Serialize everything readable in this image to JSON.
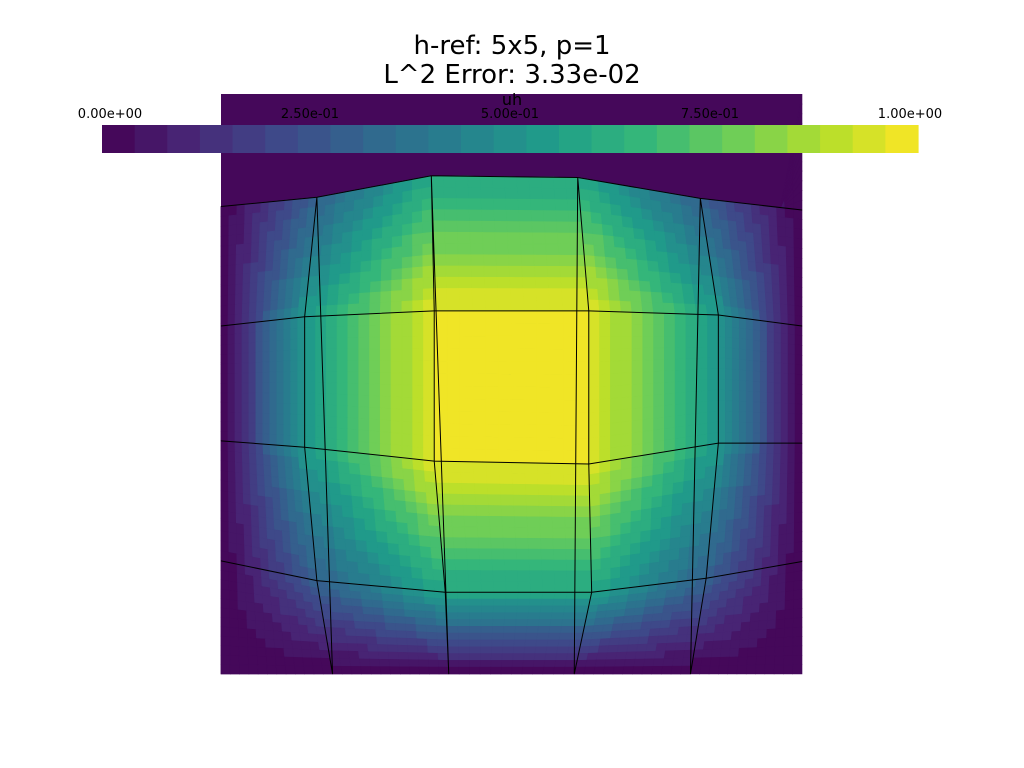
{
  "chart_data": {
    "type": "heatmap",
    "title": "h-ref: 5x5, p=1",
    "subtitle": "L^2 Error: 3.33e-02",
    "field_name": "uh",
    "colormap": "viridis",
    "value_range": [
      0.0,
      1.0
    ],
    "colorbar": {
      "title": "uh",
      "orientation": "horizontal",
      "placement": "top",
      "n_colors": 25,
      "tick_labels": [
        "0.00e+00",
        "2.50e-01",
        "5.00e-01",
        "7.50e-01",
        "1.00e+00"
      ],
      "tick_values": [
        0.0,
        0.25,
        0.5,
        0.75,
        1.0
      ]
    },
    "mesh": {
      "type": "structured-quad",
      "nx": 5,
      "ny": 5,
      "polynomial_degree": 1,
      "domain_x": [
        0,
        1
      ],
      "domain_y": [
        0,
        1
      ],
      "nodes_x": [
        [
          0.0,
          0.192,
          0.392,
          0.608,
          0.808,
          1.0
        ],
        [
          0.0,
          0.165,
          0.362,
          0.614,
          0.825,
          1.0
        ],
        [
          0.0,
          0.144,
          0.367,
          0.633,
          0.856,
          1.0
        ],
        [
          0.0,
          0.144,
          0.367,
          0.633,
          0.856,
          1.0
        ],
        [
          0.0,
          0.165,
          0.386,
          0.638,
          0.835,
          1.0
        ],
        [
          0.0,
          0.192,
          0.392,
          0.608,
          0.808,
          1.0
        ]
      ],
      "nodes_y": [
        [
          0.0,
          0.0,
          0.0,
          0.0,
          0.0,
          1.0
        ],
        [
          0.806,
          0.822,
          0.859,
          0.856,
          0.82,
          0.8
        ],
        [
          0.6,
          0.616,
          0.626,
          0.626,
          0.619,
          0.6
        ],
        [
          0.402,
          0.391,
          0.367,
          0.362,
          0.398,
          0.398
        ],
        [
          0.195,
          0.161,
          0.141,
          0.141,
          0.165,
          0.194
        ],
        [
          0.0,
          0.0,
          0.0,
          0.0,
          0.0,
          0.0
        ]
      ],
      "nodal_values": [
        [
          0.0,
          0.0,
          0.0,
          0.0,
          0.0,
          0.0
        ],
        [
          0.0,
          0.31,
          0.59,
          0.59,
          0.31,
          0.0
        ],
        [
          0.0,
          0.53,
          0.97,
          0.97,
          0.53,
          0.0
        ],
        [
          0.0,
          0.53,
          0.97,
          0.97,
          0.53,
          0.0
        ],
        [
          0.0,
          0.31,
          0.59,
          0.59,
          0.31,
          0.0
        ],
        [
          0.0,
          0.0,
          0.0,
          0.0,
          0.0,
          0.0
        ]
      ]
    }
  }
}
